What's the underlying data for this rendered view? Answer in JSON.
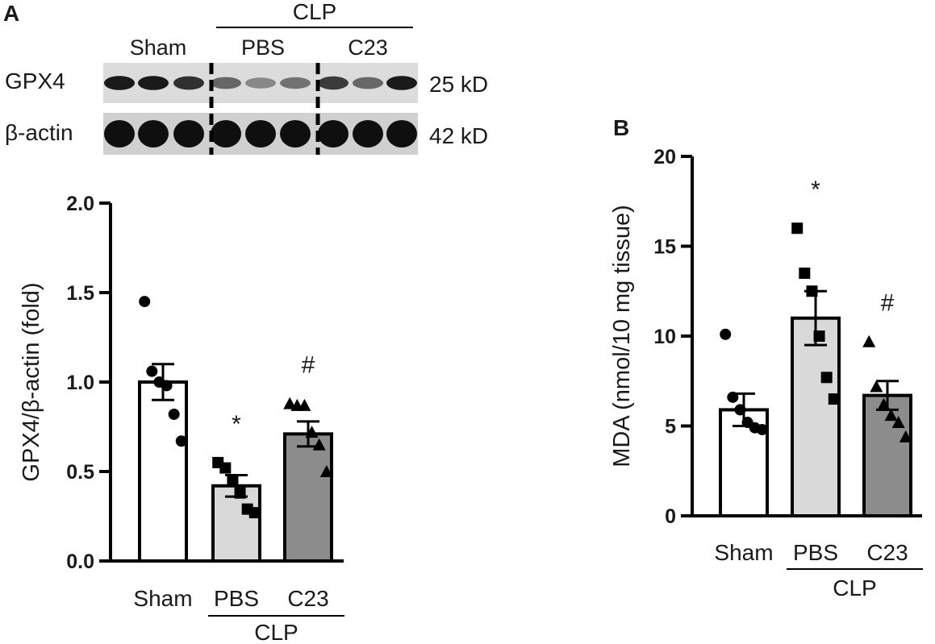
{
  "panels": {
    "a_label": "A",
    "b_label": "B"
  },
  "blot": {
    "group_top": "CLP",
    "lanes": [
      "Sham",
      "PBS",
      "C23"
    ],
    "rows": [
      {
        "name": "GPX4",
        "size": "25 kD",
        "intensity": [
          0.95,
          0.95,
          0.85,
          0.6,
          0.45,
          0.55,
          0.8,
          0.6,
          0.95
        ]
      },
      {
        "name": "β-actin",
        "size": "42 kD",
        "intensity": [
          1,
          1,
          1,
          1,
          1,
          1,
          1,
          1,
          1
        ]
      }
    ]
  },
  "colors": {
    "sham": "#ffffff",
    "pbs": "#d9d9d9",
    "c23": "#8c8c8c",
    "ink": "#000000"
  },
  "chart_data": [
    {
      "type": "bar",
      "panel": "A",
      "categories": [
        "Sham",
        "PBS",
        "C23"
      ],
      "group_label": "CLP",
      "ylabel": "GPX4/β-actin (fold)",
      "ylim": [
        0,
        2.0
      ],
      "yticks": [
        "0.0",
        "0.5",
        "1.0",
        "1.5",
        "2.0"
      ],
      "values": [
        1.0,
        0.42,
        0.71
      ],
      "sem": [
        0.1,
        0.06,
        0.07
      ],
      "points": [
        [
          1.45,
          1.06,
          1.0,
          0.98,
          0.82,
          0.67
        ],
        [
          0.55,
          0.52,
          0.45,
          0.38,
          0.29,
          0.27
        ],
        [
          0.88,
          0.87,
          0.87,
          0.72,
          0.65,
          0.5
        ]
      ],
      "markers": [
        "circle",
        "square",
        "triangle"
      ],
      "annotations": [
        "",
        "*",
        "#"
      ]
    },
    {
      "type": "bar",
      "panel": "B",
      "categories": [
        "Sham",
        "PBS",
        "C23"
      ],
      "group_label": "CLP",
      "ylabel": "MDA (nmol/10 mg tissue)",
      "ylim": [
        0,
        20
      ],
      "yticks": [
        "0",
        "5",
        "10",
        "15",
        "20"
      ],
      "values": [
        5.9,
        11.0,
        6.7
      ],
      "sem": [
        0.9,
        1.5,
        0.8
      ],
      "points": [
        [
          10.1,
          6.6,
          5.9,
          5.2,
          4.9,
          4.8
        ],
        [
          16.0,
          13.5,
          12.5,
          10.0,
          7.7,
          6.5
        ],
        [
          9.7,
          7.2,
          6.2,
          5.6,
          5.2,
          4.4
        ]
      ],
      "markers": [
        "circle",
        "square",
        "triangle"
      ],
      "annotations": [
        "",
        "*",
        "#"
      ]
    }
  ]
}
